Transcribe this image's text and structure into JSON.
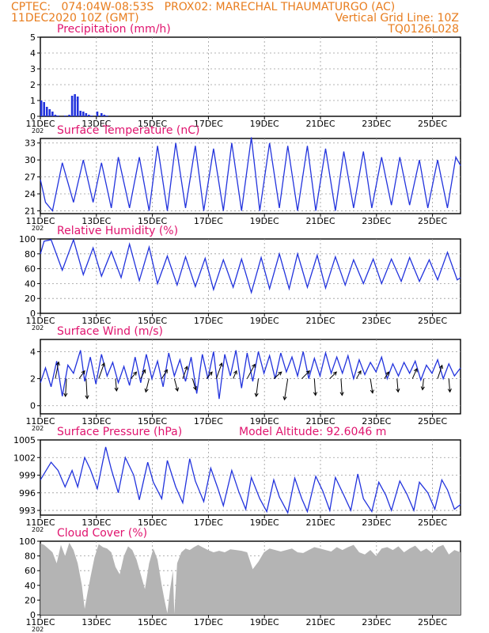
{
  "header": {
    "line1_left": "CPTEC:   074:04W-08:53S   PROX02: MARECHAL THAUMATURGO (AC)",
    "line2_left": "11DEC2020 10Z (GMT)",
    "line2_right": "Vertical Grid Line: 10Z",
    "line3_right": "TQ0126L028"
  },
  "colors": {
    "header": "#e87d1e",
    "title": "#e0146e",
    "line": "#2233dd",
    "cloud": "#b4b4b4",
    "frame": "#000000",
    "grid": "#9a9a9a"
  },
  "x_axis": {
    "tick_labels": [
      "11DEC",
      "13DEC",
      "15DEC",
      "17DEC",
      "19DEC",
      "21DEC",
      "23DEC",
      "25DEC"
    ],
    "year_fragment": "202"
  },
  "chart_data": [
    {
      "type": "bar",
      "title": "Precipitation (mm/h)",
      "xlim_days": [
        11.417,
        26.417
      ],
      "ylim": [
        0,
        5
      ],
      "yticks": [
        "0",
        "1",
        "2",
        "3",
        "4",
        "5"
      ],
      "x": [
        11.45,
        11.55,
        11.65,
        11.75,
        11.85,
        11.95,
        12.05,
        12.15,
        12.3,
        12.45,
        12.55,
        12.65,
        12.75,
        12.85,
        12.95,
        13.05,
        13.15,
        13.25,
        13.45,
        13.6,
        13.7,
        13.8
      ],
      "values": [
        1.0,
        0.9,
        0.6,
        0.45,
        0.3,
        0.1,
        0.05,
        0.0,
        0.05,
        0.1,
        1.3,
        1.4,
        1.25,
        0.35,
        0.3,
        0.2,
        0.1,
        0.05,
        0.3,
        0.2,
        0.1,
        0.05
      ]
    },
    {
      "type": "line",
      "title": "Surface Temperature (nC)",
      "xlim_days": [
        11.417,
        26.417
      ],
      "ylim": [
        20.5,
        33.8
      ],
      "yticks": [
        "21",
        "24",
        "27",
        "30",
        "33"
      ],
      "x": [
        11.42,
        11.6,
        11.85,
        12.2,
        12.6,
        12.95,
        13.3,
        13.6,
        13.95,
        14.2,
        14.6,
        14.95,
        15.3,
        15.6,
        15.95,
        16.25,
        16.6,
        16.95,
        17.25,
        17.6,
        17.95,
        18.25,
        18.6,
        18.95,
        19.25,
        19.6,
        19.95,
        20.25,
        20.6,
        20.95,
        21.25,
        21.6,
        21.95,
        22.25,
        22.6,
        22.95,
        23.25,
        23.6,
        23.95,
        24.25,
        24.6,
        24.95,
        25.25,
        25.6,
        25.95,
        26.25,
        26.42
      ],
      "values": [
        26.5,
        22.5,
        21.0,
        29.5,
        22.5,
        30.0,
        22.5,
        29.5,
        21.5,
        30.5,
        21.5,
        30.5,
        21.0,
        32.5,
        21.0,
        33.0,
        21.5,
        32.5,
        21.0,
        32.0,
        21.0,
        33.0,
        21.0,
        34.0,
        21.0,
        33.0,
        21.5,
        32.5,
        21.0,
        32.5,
        21.0,
        32.0,
        21.0,
        31.5,
        21.5,
        31.5,
        21.5,
        30.5,
        22.0,
        30.5,
        22.0,
        30.0,
        21.5,
        30.0,
        21.5,
        30.5,
        29.0
      ]
    },
    {
      "type": "line",
      "title": "Relative Humidity (%)",
      "xlim_days": [
        11.417,
        26.417
      ],
      "ylim": [
        0,
        100
      ],
      "yticks": [
        "0",
        "20",
        "40",
        "60",
        "80",
        "100"
      ],
      "x": [
        11.42,
        11.55,
        11.8,
        12.2,
        12.6,
        12.95,
        13.3,
        13.6,
        13.95,
        14.3,
        14.6,
        14.95,
        15.3,
        15.6,
        15.95,
        16.3,
        16.6,
        16.95,
        17.3,
        17.6,
        17.95,
        18.3,
        18.6,
        18.95,
        19.3,
        19.6,
        19.95,
        20.3,
        20.6,
        20.95,
        21.3,
        21.6,
        21.95,
        22.3,
        22.6,
        22.95,
        23.3,
        23.6,
        23.95,
        24.3,
        24.6,
        24.95,
        25.3,
        25.6,
        25.95,
        26.3,
        26.42
      ],
      "values": [
        80,
        97,
        99,
        58,
        99,
        52,
        88,
        50,
        83,
        48,
        93,
        44,
        89,
        40,
        77,
        38,
        76,
        36,
        74,
        32,
        72,
        35,
        73,
        28,
        75,
        33,
        80,
        33,
        80,
        35,
        78,
        34,
        76,
        38,
        72,
        40,
        73,
        40,
        73,
        43,
        75,
        43,
        72,
        45,
        82,
        45,
        48
      ]
    },
    {
      "type": "line",
      "title": "Surface Wind (m/s)",
      "xlim_days": [
        11.417,
        26.417
      ],
      "ylim": [
        -0.6,
        4.9
      ],
      "yticks": [
        "0",
        "2",
        "4"
      ],
      "x": [
        11.42,
        11.6,
        11.8,
        12.0,
        12.2,
        12.4,
        12.6,
        12.85,
        13.0,
        13.2,
        13.4,
        13.6,
        13.8,
        14.0,
        14.2,
        14.4,
        14.6,
        14.8,
        15.0,
        15.2,
        15.4,
        15.6,
        15.8,
        16.0,
        16.2,
        16.4,
        16.6,
        16.8,
        17.0,
        17.2,
        17.4,
        17.6,
        17.8,
        18.0,
        18.2,
        18.4,
        18.6,
        18.8,
        19.0,
        19.2,
        19.4,
        19.6,
        19.8,
        20.0,
        20.2,
        20.4,
        20.6,
        20.8,
        21.0,
        21.2,
        21.4,
        21.6,
        21.8,
        22.0,
        22.2,
        22.4,
        22.6,
        22.8,
        23.0,
        23.2,
        23.4,
        23.6,
        23.8,
        24.0,
        24.2,
        24.4,
        24.6,
        24.8,
        25.0,
        25.2,
        25.4,
        25.6,
        25.8,
        26.0,
        26.2,
        26.42
      ],
      "values": [
        1.7,
        2.8,
        1.4,
        3.3,
        0.7,
        3.0,
        2.4,
        4.1,
        1.8,
        3.6,
        1.6,
        3.8,
        2.2,
        3.2,
        1.7,
        2.9,
        1.5,
        3.6,
        1.7,
        3.8,
        2.0,
        3.3,
        1.4,
        3.9,
        2.2,
        3.4,
        1.8,
        3.6,
        0.9,
        3.8,
        2.0,
        4.0,
        0.5,
        3.8,
        2.2,
        4.1,
        1.3,
        3.9,
        1.8,
        4.0,
        2.4,
        3.7,
        2.0,
        3.9,
        2.5,
        3.6,
        2.2,
        4.0,
        2.0,
        3.5,
        2.2,
        3.9,
        2.4,
        3.6,
        2.4,
        3.7,
        2.0,
        3.4,
        2.3,
        3.2,
        2.5,
        3.6,
        2.0,
        3.1,
        2.2,
        3.2,
        2.4,
        3.3,
        1.9,
        3.0,
        2.4,
        3.4,
        2.0,
        3.1,
        2.2,
        2.8
      ],
      "wind_arrows": [
        {
          "x": 11.95,
          "dx": 0.3,
          "dy": 1.5
        },
        {
          "x": 12.35,
          "dx": -0.1,
          "dy": -1.6
        },
        {
          "x": 12.8,
          "dx": 0.5,
          "dy": 0.7
        },
        {
          "x": 13.05,
          "dx": 0.1,
          "dy": -1.8
        },
        {
          "x": 13.5,
          "dx": 0.5,
          "dy": 1.4
        },
        {
          "x": 14.1,
          "dx": 0.1,
          "dy": -1.1
        },
        {
          "x": 14.65,
          "dx": 0.5,
          "dy": 0.6
        },
        {
          "x": 15.0,
          "dx": 0.4,
          "dy": 0.8
        },
        {
          "x": 15.3,
          "dx": -0.3,
          "dy": -1.2
        },
        {
          "x": 15.75,
          "dx": 0.5,
          "dy": 0.8
        },
        {
          "x": 16.2,
          "dx": 0.3,
          "dy": -1.1
        },
        {
          "x": 16.5,
          "dx": 0.4,
          "dy": 1.1
        },
        {
          "x": 16.85,
          "dx": 0.3,
          "dy": -1.0
        },
        {
          "x": 17.35,
          "dx": 0.5,
          "dy": 0.6
        },
        {
          "x": 17.7,
          "dx": 0.5,
          "dy": 1.4
        },
        {
          "x": 18.3,
          "dx": 0.3,
          "dy": 0.7
        },
        {
          "x": 18.8,
          "dx": 0.7,
          "dy": 1.3
        },
        {
          "x": 19.2,
          "dx": -0.2,
          "dy": -1.6
        },
        {
          "x": 19.75,
          "dx": 0.7,
          "dy": 0.6
        },
        {
          "x": 20.25,
          "dx": -0.3,
          "dy": -1.9
        },
        {
          "x": 20.75,
          "dx": 0.7,
          "dy": 0.7
        },
        {
          "x": 21.2,
          "dx": 0.1,
          "dy": -1.5
        },
        {
          "x": 21.75,
          "dx": 0.6,
          "dy": 0.6
        },
        {
          "x": 22.15,
          "dx": 0.1,
          "dy": -1.5
        },
        {
          "x": 22.7,
          "dx": 0.4,
          "dy": 0.7
        },
        {
          "x": 23.2,
          "dx": 0.2,
          "dy": -1.3
        },
        {
          "x": 23.7,
          "dx": 0.4,
          "dy": 0.6
        },
        {
          "x": 24.15,
          "dx": 0.1,
          "dy": -1.2
        },
        {
          "x": 24.7,
          "dx": 0.4,
          "dy": 0.9
        },
        {
          "x": 25.1,
          "dx": -0.1,
          "dy": -1.0
        },
        {
          "x": 25.6,
          "dx": 0.4,
          "dy": 1.2
        },
        {
          "x": 26.0,
          "dx": 0.1,
          "dy": -1.2
        }
      ]
    },
    {
      "type": "line",
      "title": "Surface Pressure (hPa)",
      "annotation": "Model Altitude: 92.6046 m",
      "xlim_days": [
        11.417,
        26.417
      ],
      "ylim": [
        992.2,
        1005
      ],
      "yticks": [
        "993",
        "996",
        "999",
        "1002",
        "1005"
      ],
      "x": [
        11.42,
        11.8,
        12.05,
        12.3,
        12.55,
        12.75,
        13.0,
        13.2,
        13.45,
        13.75,
        13.95,
        14.2,
        14.45,
        14.75,
        14.95,
        15.25,
        15.45,
        15.75,
        15.95,
        16.25,
        16.5,
        16.75,
        16.95,
        17.25,
        17.5,
        17.75,
        17.95,
        18.25,
        18.5,
        18.75,
        18.95,
        19.25,
        19.5,
        19.75,
        19.95,
        20.25,
        20.5,
        20.75,
        20.95,
        21.25,
        21.5,
        21.75,
        21.95,
        22.25,
        22.5,
        22.75,
        22.95,
        23.25,
        23.5,
        23.75,
        23.95,
        24.25,
        24.5,
        24.75,
        24.95,
        25.25,
        25.5,
        25.75,
        25.95,
        26.2,
        26.42
      ],
      "values": [
        998.2,
        1001.2,
        999.8,
        997.0,
        999.8,
        997.0,
        1002.0,
        1000.0,
        996.7,
        1003.8,
        1000.0,
        996.0,
        1002.0,
        999.0,
        994.8,
        1001.2,
        997.8,
        995.0,
        1001.5,
        997.0,
        994.3,
        1001.8,
        998.0,
        994.5,
        1000.2,
        996.8,
        993.8,
        999.8,
        996.2,
        993.2,
        998.6,
        995.0,
        992.8,
        998.2,
        995.3,
        992.6,
        998.5,
        995.0,
        992.8,
        998.8,
        996.3,
        993.0,
        998.6,
        995.6,
        993.0,
        999.2,
        995.0,
        992.8,
        997.8,
        995.6,
        993.0,
        998.0,
        995.8,
        993.0,
        997.8,
        996.0,
        993.2,
        998.2,
        996.5,
        993.2,
        994.0
      ]
    },
    {
      "type": "area",
      "title": "Cloud Cover (%)",
      "xlim_days": [
        11.417,
        26.417
      ],
      "ylim": [
        0,
        100
      ],
      "yticks": [
        "0",
        "20",
        "40",
        "60",
        "80",
        "100"
      ],
      "x": [
        11.42,
        11.55,
        11.7,
        11.85,
        12.0,
        12.15,
        12.3,
        12.45,
        12.6,
        12.75,
        12.9,
        13.0,
        13.1,
        13.2,
        13.35,
        13.5,
        13.65,
        13.8,
        13.95,
        14.1,
        14.25,
        14.4,
        14.55,
        14.7,
        14.85,
        15.0,
        15.15,
        15.3,
        15.45,
        15.6,
        15.75,
        15.85,
        15.95,
        16.05,
        16.15,
        16.2,
        16.3,
        16.45,
        16.6,
        16.75,
        16.9,
        17.05,
        17.2,
        17.4,
        17.6,
        17.8,
        18.0,
        18.2,
        18.4,
        18.6,
        18.8,
        19.0,
        19.2,
        19.4,
        19.6,
        19.8,
        20.0,
        20.2,
        20.4,
        20.6,
        20.8,
        21.0,
        21.2,
        21.4,
        21.6,
        21.8,
        22.0,
        22.2,
        22.4,
        22.6,
        22.8,
        23.0,
        23.2,
        23.4,
        23.6,
        23.8,
        24.0,
        24.2,
        24.4,
        24.6,
        24.8,
        25.0,
        25.2,
        25.4,
        25.6,
        25.8,
        26.0,
        26.2,
        26.42
      ],
      "values": [
        97,
        95,
        90,
        85,
        70,
        95,
        80,
        98,
        88,
        70,
        40,
        8,
        30,
        50,
        78,
        96,
        92,
        90,
        85,
        65,
        55,
        80,
        93,
        88,
        75,
        55,
        35,
        70,
        90,
        75,
        40,
        20,
        2,
        35,
        60,
        1,
        70,
        85,
        90,
        88,
        92,
        95,
        92,
        88,
        85,
        87,
        85,
        89,
        88,
        87,
        85,
        62,
        72,
        85,
        90,
        88,
        86,
        88,
        90,
        85,
        84,
        88,
        92,
        90,
        88,
        86,
        92,
        88,
        92,
        95,
        85,
        82,
        88,
        80,
        90,
        92,
        88,
        93,
        85,
        90,
        94,
        86,
        90,
        84,
        92,
        95,
        82,
        88,
        85
      ]
    }
  ]
}
